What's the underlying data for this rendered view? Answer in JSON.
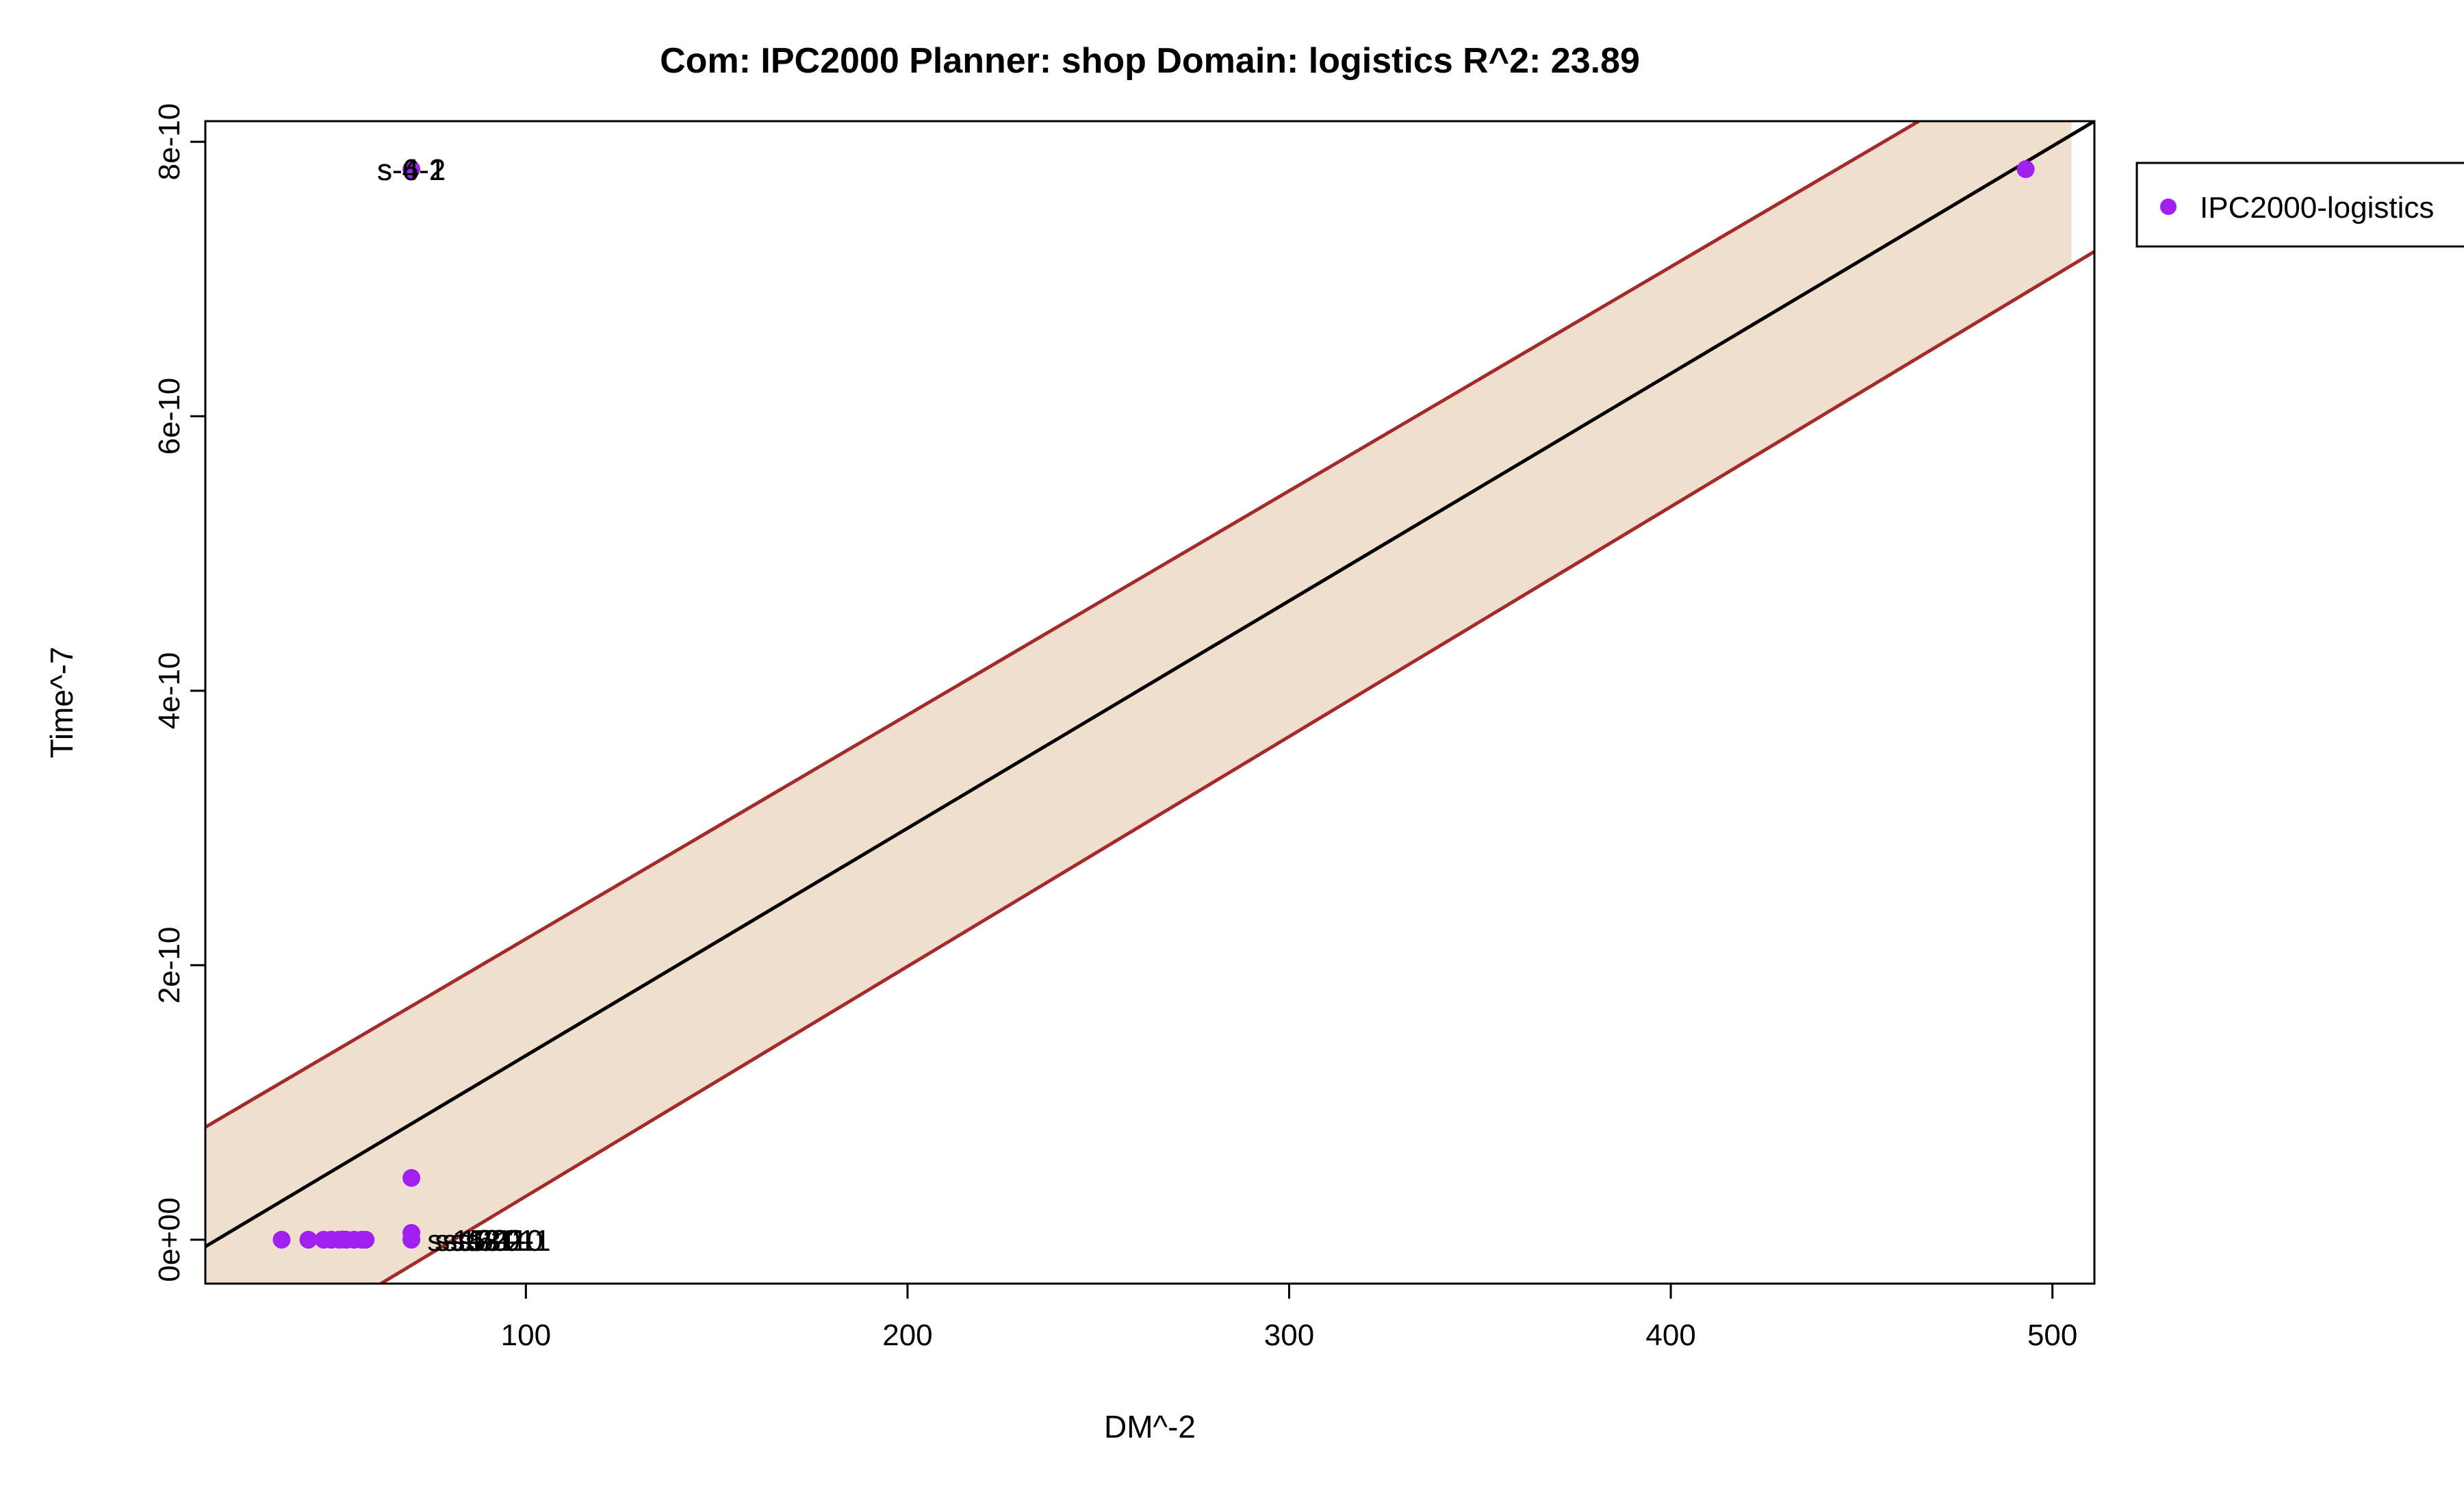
{
  "chart_data": {
    "type": "scatter",
    "title": "Com: IPC2000 Planner: shop Domain: logistics R^2: 23.89",
    "xlabel": "DM^-2",
    "ylabel": "Time^-7",
    "xlim": [
      16,
      511
    ],
    "ylim": [
      -3.2e-11,
      8.15e-10
    ],
    "xticks": [
      100,
      200,
      300,
      400,
      500
    ],
    "xtick_labels": [
      "100",
      "200",
      "300",
      "400",
      "500"
    ],
    "yticks": [
      0,
      2e-10,
      4e-10,
      6e-10,
      8e-10
    ],
    "ytick_labels": [
      "0e+00",
      "2e-10",
      "4e-10",
      "6e-10",
      "8e-10"
    ],
    "grid": false,
    "legend": {
      "placement": "right-outside",
      "entries": [
        "IPC2000-logistics"
      ]
    },
    "regression": {
      "fit": {
        "x": [
          16,
          511
        ],
        "y": [
          -5e-12,
          8.15e-10
        ]
      },
      "upper": {
        "x": [
          16,
          465
        ],
        "y": [
          8.2e-11,
          8.15e-10
        ]
      },
      "lower": {
        "x": [
          62,
          511
        ],
        "y": [
          -3.2e-11,
          7.2e-10
        ]
      },
      "band_x_max": 505
    },
    "series": [
      {
        "name": "IPC2000-logistics",
        "x": [
          36,
          43,
          47,
          49,
          51,
          52,
          53,
          55,
          57,
          58,
          70,
          70,
          70,
          70,
          493
        ],
        "y": [
          0,
          0,
          0,
          0,
          0,
          2e-13,
          0,
          0,
          0,
          0,
          4.5e-11,
          5e-12,
          0,
          7.8e-10,
          7.8e-10
        ]
      }
    ],
    "annotations": [
      {
        "text": "s-6-1",
        "x": 70,
        "y": 7.8e-10
      },
      {
        "text": "s-6-2",
        "x": 70,
        "y": 7.8e-10
      },
      {
        "text": "s-4-1",
        "x": 70,
        "y": 7.8e-10
      },
      {
        "text": "s-4-2",
        "x": 70,
        "y": 7.8e-10
      },
      {
        "text": "s-15-1",
        "x": 72,
        "y": 0
      },
      {
        "text": "s-16-0",
        "x": 74,
        "y": 0
      },
      {
        "text": "s-18-1",
        "x": 76,
        "y": 0
      },
      {
        "text": "s-20-1",
        "x": 78,
        "y": 0
      },
      {
        "text": "s-21-0",
        "x": 80,
        "y": 0
      },
      {
        "text": "s-22-1",
        "x": 82,
        "y": 0
      }
    ],
    "colors": {
      "points": "#a020f0",
      "fit_line": "#000000",
      "bound_lines": "#a52a2a",
      "band": "#efdfcc"
    }
  }
}
